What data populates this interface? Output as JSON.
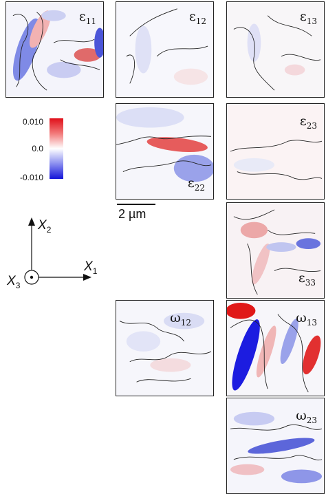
{
  "panels": {
    "e11": {
      "symbol": "ε",
      "sub": "11"
    },
    "e12": {
      "symbol": "ε",
      "sub": "12"
    },
    "e13": {
      "symbol": "ε",
      "sub": "13"
    },
    "e22": {
      "symbol": "ε",
      "sub": "22"
    },
    "e23": {
      "symbol": "ε",
      "sub": "23"
    },
    "e33": {
      "symbol": "ε",
      "sub": "33"
    },
    "w12": {
      "symbol": "ω",
      "sub": "12"
    },
    "w13": {
      "symbol": "ω",
      "sub": "13"
    },
    "w23": {
      "symbol": "ω",
      "sub": "23"
    }
  },
  "colorbar": {
    "ticks": [
      "0.010",
      "0.0",
      "-0.010"
    ],
    "colors": {
      "high": "#e0101a",
      "mid": "#ffffff",
      "low": "#1414d8"
    }
  },
  "scalebar": {
    "label": "2 µm"
  },
  "axes": {
    "x1": {
      "letter": "X",
      "sub": "1"
    },
    "x2": {
      "letter": "X",
      "sub": "2"
    },
    "x3": {
      "letter": "X",
      "sub": "3"
    }
  }
}
